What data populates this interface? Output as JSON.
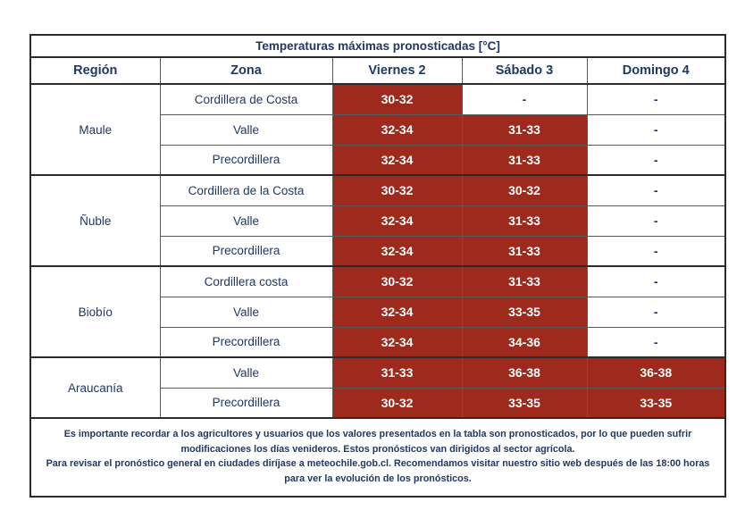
{
  "table": {
    "title": "Temperaturas máximas pronosticadas [°C]",
    "columns": [
      "Región",
      "Zona",
      "Viernes 2",
      "Sábado 3",
      "Domingo 4"
    ],
    "colors": {
      "highlight_red": "#9E2A1E",
      "navy_text": "#1F3864",
      "outer_border": "#2B2B2B",
      "inner_border": "#595959",
      "value_text_on_red": "#FFFFFF"
    },
    "regions": [
      {
        "name": "Maule",
        "rows": [
          {
            "zona": "Cordillera de Costa",
            "temps": [
              "30-32",
              "-",
              "-"
            ]
          },
          {
            "zona": "Valle",
            "temps": [
              "32-34",
              "31-33",
              "-"
            ]
          },
          {
            "zona": "Precordillera",
            "temps": [
              "32-34",
              "31-33",
              "-"
            ]
          }
        ]
      },
      {
        "name": "Ñuble",
        "rows": [
          {
            "zona": "Cordillera de la Costa",
            "temps": [
              "30-32",
              "30-32",
              "-"
            ]
          },
          {
            "zona": "Valle",
            "temps": [
              "32-34",
              "31-33",
              "-"
            ]
          },
          {
            "zona": "Precordillera",
            "temps": [
              "32-34",
              "31-33",
              "-"
            ]
          }
        ]
      },
      {
        "name": "Biobío",
        "rows": [
          {
            "zona": "Cordillera costa",
            "temps": [
              "30-32",
              "31-33",
              "-"
            ]
          },
          {
            "zona": "Valle",
            "temps": [
              "32-34",
              "33-35",
              "-"
            ]
          },
          {
            "zona": "Precordillera",
            "temps": [
              "32-34",
              "34-36",
              "-"
            ]
          }
        ]
      },
      {
        "name": "Araucanía",
        "rows": [
          {
            "zona": "Valle",
            "temps": [
              "31-33",
              "36-38",
              "36-38"
            ]
          },
          {
            "zona": "Precordillera",
            "temps": [
              "30-32",
              "33-35",
              "33-35"
            ]
          }
        ]
      }
    ],
    "footer": {
      "paragraph1": "Es importante recordar a los agricultores y usuarios que los valores presentados en la tabla son pronosticados, por lo que pueden sufrir modificaciones los días venideros. Estos pronósticos van dirigidos al sector agrícola.",
      "paragraph2": "Para revisar el pronóstico general en ciudades diríjase a meteochile.gob.cl. Recomendamos visitar nuestro sitio web después de las 18:00 horas para ver la evolución de los pronósticos."
    }
  }
}
